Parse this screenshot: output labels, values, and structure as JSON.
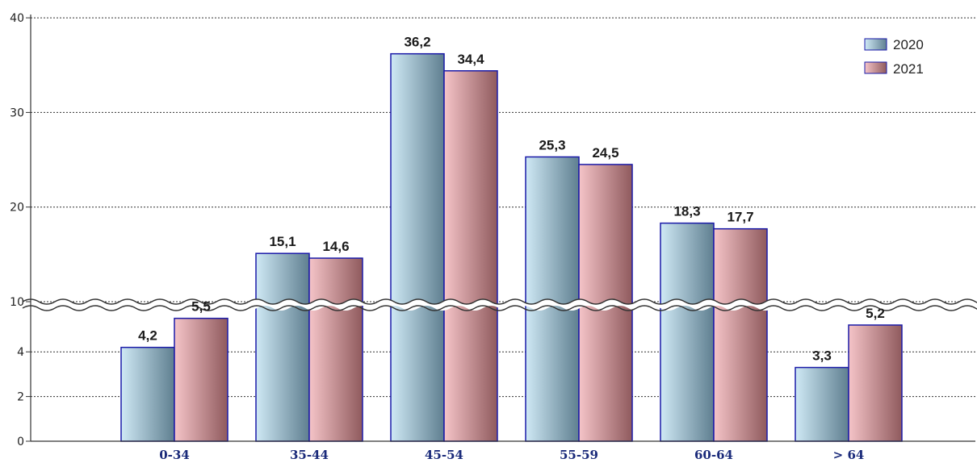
{
  "chart_data": {
    "type": "bar",
    "title": "",
    "xlabel": "",
    "ylabel": "",
    "categories": [
      "0-34",
      "35-44",
      "45-54",
      "55-59",
      "60-64",
      "> 64"
    ],
    "series": [
      {
        "name": "2020",
        "values": [
          4.2,
          15.1,
          36.2,
          25.3,
          18.3,
          3.3
        ],
        "labels": [
          "4,2",
          "15,1",
          "36,2",
          "25,3",
          "18,3",
          "3,3"
        ],
        "color_light": "#cfe9f5",
        "color_dark": "#5f7f90"
      },
      {
        "name": "2021",
        "values": [
          5.5,
          14.6,
          34.4,
          24.5,
          17.7,
          5.2
        ],
        "labels": [
          "5,5",
          "14,6",
          "34,4",
          "24,5",
          "17,7",
          "5,2"
        ],
        "color_light": "#f5c4c8",
        "color_dark": "#8f5a5d"
      }
    ],
    "ylim": [
      0,
      40
    ],
    "axis_break": [
      6,
      10
    ],
    "y_ticks": [
      {
        "value": 0,
        "label": "0"
      },
      {
        "value": 2,
        "label": "2"
      },
      {
        "value": 4,
        "label": "4"
      },
      {
        "value": 10,
        "label": "10"
      },
      {
        "value": 20,
        "label": "20"
      },
      {
        "value": 30,
        "label": "30"
      },
      {
        "value": 40,
        "label": "40"
      }
    ],
    "grid": true,
    "legend": {
      "position": "top-right",
      "entries": [
        "2020",
        "2021"
      ]
    },
    "bar_edge_color": "#1a1aa8"
  }
}
